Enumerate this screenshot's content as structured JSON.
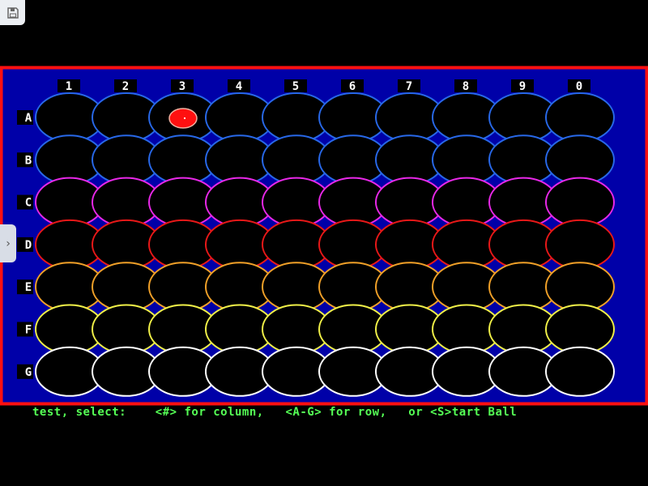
{
  "columns": [
    "1",
    "2",
    "3",
    "4",
    "5",
    "6",
    "7",
    "8",
    "9",
    "0"
  ],
  "rows": [
    {
      "label": "A",
      "color": "#2868e8"
    },
    {
      "label": "B",
      "color": "#2868e8"
    },
    {
      "label": "C",
      "color": "#e828e8"
    },
    {
      "label": "D",
      "color": "#e81818"
    },
    {
      "label": "E",
      "color": "#f0a028"
    },
    {
      "label": "F",
      "color": "#f0f048"
    },
    {
      "label": "G",
      "color": "#ffffff"
    }
  ],
  "ball": {
    "row": "A",
    "column": "3",
    "color": "#ff1010"
  },
  "colors": {
    "frame": "#ff1010",
    "board": "#0000a8",
    "status_text": "#55ff55"
  },
  "status": "test, select:    <#> for column,   <A-G> for row,   or <S>tart Ball",
  "icons": {
    "save": "save-icon",
    "side_tab": "chevron-right-icon"
  }
}
